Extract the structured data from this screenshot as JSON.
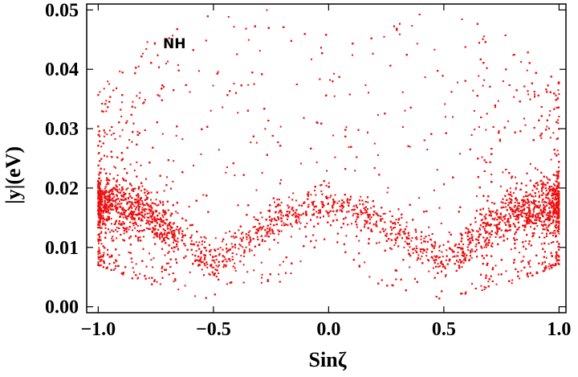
{
  "chart_data": {
    "type": "scatter",
    "title": "",
    "xlabel": "Sinζ",
    "ylabel": "|y|(eV)",
    "xlim": [
      -1.05,
      1.03
    ],
    "ylim": [
      -0.001,
      0.051
    ],
    "xticks": [
      -1.0,
      -0.5,
      0.0,
      0.5,
      1.0
    ],
    "xtick_labels": [
      "−1.0",
      "−0.5",
      "0.0",
      "0.5",
      "1.0"
    ],
    "yticks": [
      0.0,
      0.01,
      0.02,
      0.03,
      0.04,
      0.05
    ],
    "ytick_labels": [
      "0.00",
      "0.01",
      "0.02",
      "0.03",
      "0.04",
      "0.05"
    ],
    "annotation": "NH",
    "grid": false,
    "series": [
      {
        "color": "#ee1111",
        "marker": "dot",
        "approx_point_count": 12000,
        "x_range": [
          -1.0,
          1.0
        ],
        "y_range": [
          0.0,
          0.05
        ],
        "envelope": [
          {
            "x": -1.0,
            "y_min": 0.007,
            "y_max": 0.036,
            "dense_band": [
              0.01,
              0.025
            ]
          },
          {
            "x": -0.8,
            "y_min": 0.004,
            "y_max": 0.046,
            "dense_band": [
              0.01,
              0.022
            ]
          },
          {
            "x": -0.5,
            "y_min": 0.001,
            "y_max": 0.05,
            "dense_band": [
              0.003,
              0.012
            ]
          },
          {
            "x": -0.2,
            "y_min": 0.004,
            "y_max": 0.05,
            "dense_band": [
              0.01,
              0.02
            ]
          },
          {
            "x": 0.0,
            "y_min": 0.012,
            "y_max": 0.05,
            "dense_band": [
              0.013,
              0.022
            ]
          },
          {
            "x": 0.2,
            "y_min": 0.004,
            "y_max": 0.05,
            "dense_band": [
              0.01,
              0.02
            ]
          },
          {
            "x": 0.5,
            "y_min": 0.001,
            "y_max": 0.05,
            "dense_band": [
              0.003,
              0.012
            ]
          },
          {
            "x": 0.8,
            "y_min": 0.004,
            "y_max": 0.046,
            "dense_band": [
              0.01,
              0.022
            ]
          },
          {
            "x": 1.0,
            "y_min": 0.007,
            "y_max": 0.038,
            "dense_band": [
              0.01,
              0.025
            ]
          }
        ]
      }
    ]
  }
}
